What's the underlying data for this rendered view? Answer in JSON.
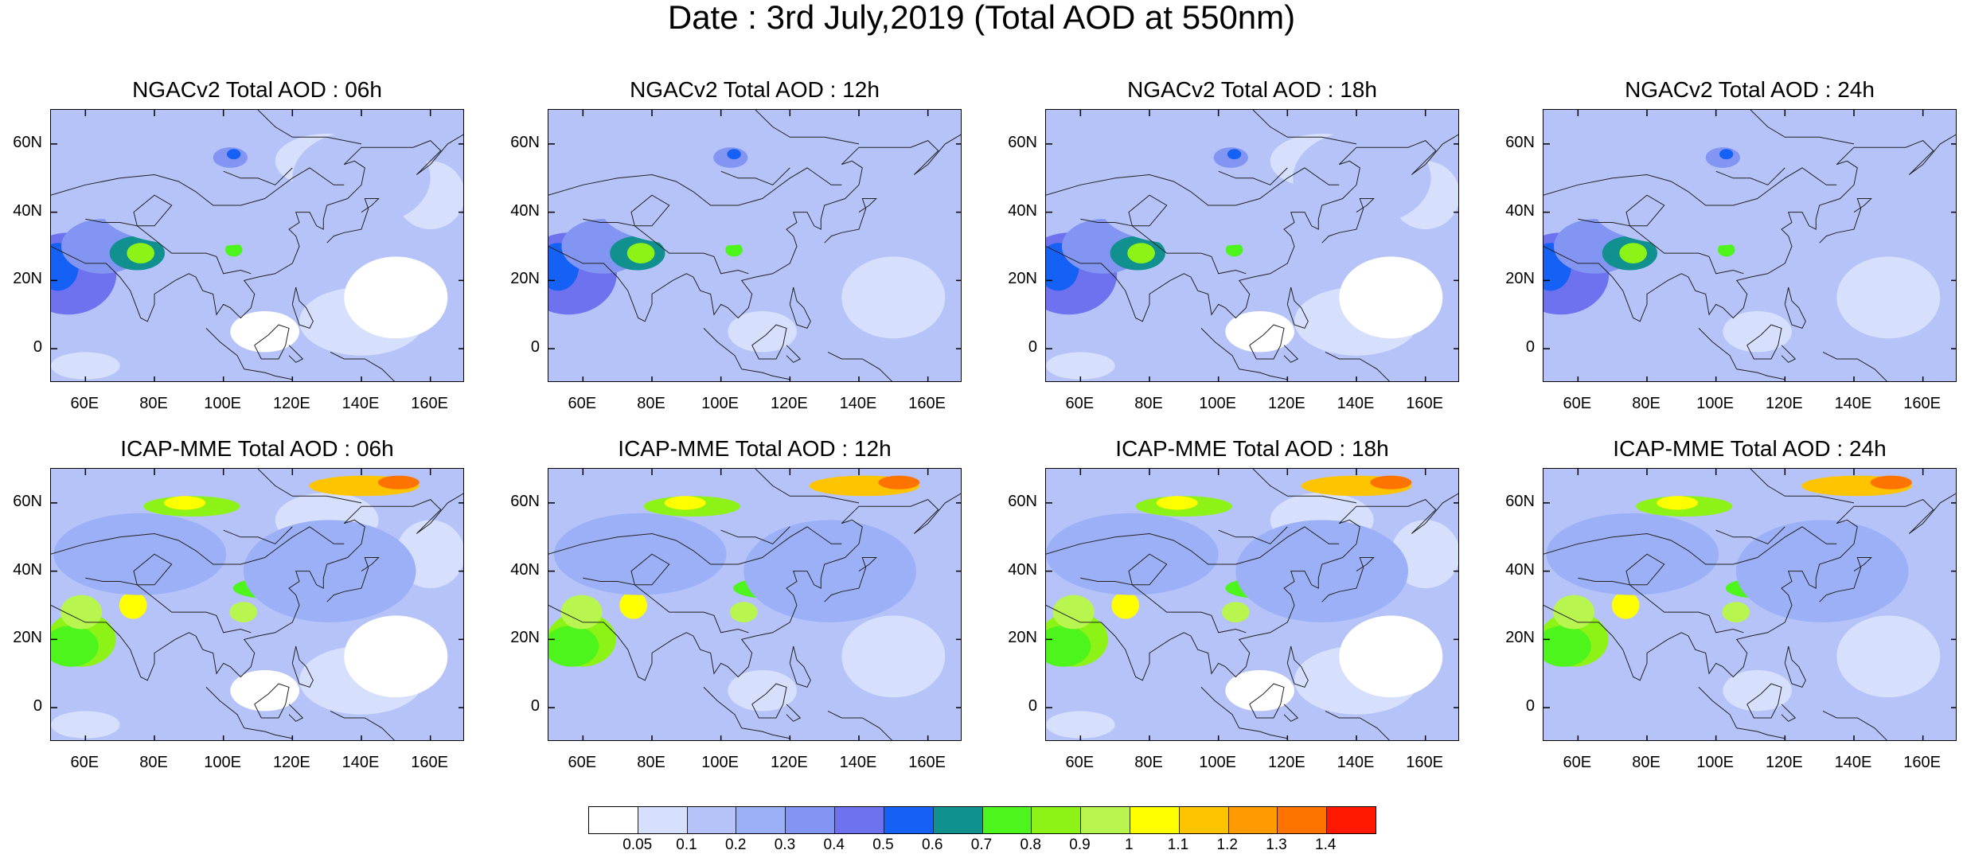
{
  "figure": {
    "title": "Date : 3rd July,2019 (Total AOD at 550nm)"
  },
  "panels": [
    {
      "title": "NGACv2 Total AOD : 06h",
      "model": "NGACv2",
      "hour": "06h"
    },
    {
      "title": "NGACv2 Total AOD : 12h",
      "model": "NGACv2",
      "hour": "12h"
    },
    {
      "title": "NGACv2 Total AOD : 18h",
      "model": "NGACv2",
      "hour": "18h"
    },
    {
      "title": "NGACv2 Total AOD : 24h",
      "model": "NGACv2",
      "hour": "24h"
    },
    {
      "title": "ICAP-MME Total AOD : 06h",
      "model": "ICAP-MME",
      "hour": "06h"
    },
    {
      "title": "ICAP-MME Total AOD : 12h",
      "model": "ICAP-MME",
      "hour": "12h"
    },
    {
      "title": "ICAP-MME Total AOD : 18h",
      "model": "ICAP-MME",
      "hour": "18h"
    },
    {
      "title": "ICAP-MME Total AOD : 24h",
      "model": "ICAP-MME",
      "hour": "24h"
    }
  ],
  "axes": {
    "lat_ticks": [
      "60N",
      "40N",
      "20N",
      "0"
    ],
    "lon_ticks": [
      "60E",
      "80E",
      "100E",
      "120E",
      "140E",
      "160E"
    ],
    "lon_range": [
      50,
      170
    ],
    "lat_range": [
      -10,
      70
    ]
  },
  "colorbar": {
    "labels": [
      "0.05",
      "0.1",
      "0.2",
      "0.3",
      "0.4",
      "0.5",
      "0.6",
      "0.7",
      "0.8",
      "0.9",
      "1",
      "1.1",
      "1.2",
      "1.3",
      "1.4"
    ],
    "colors": [
      "#ffffff",
      "#d6dffc",
      "#b5c3f8",
      "#9cb0f7",
      "#8395f2",
      "#6e72ee",
      "#1560f5",
      "#119090",
      "#4df51c",
      "#8df215",
      "#b9f54f",
      "#ffff00",
      "#ffc400",
      "#ff9a00",
      "#ff7300",
      "#ff1800"
    ]
  }
}
